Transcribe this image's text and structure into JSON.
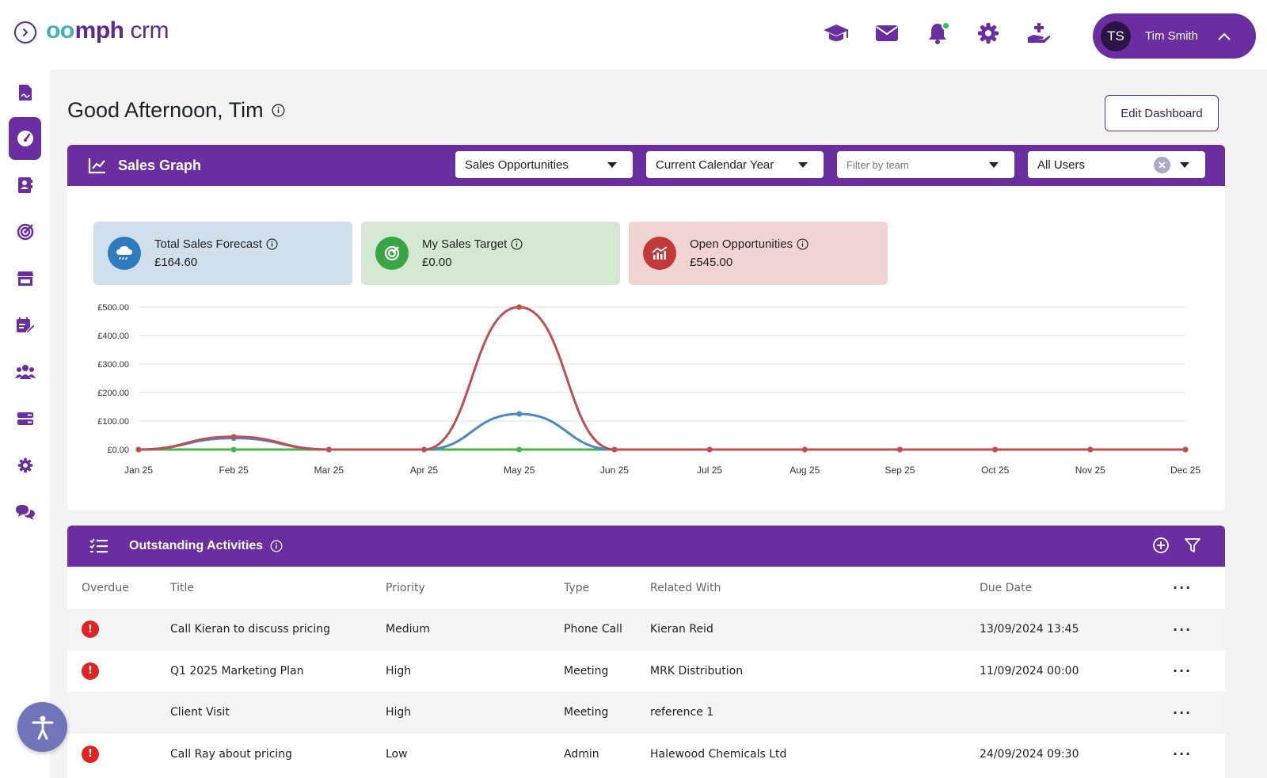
{
  "app": {
    "logo_mark": "oo",
    "logo_brand": "mph",
    "logo_sub": "crm"
  },
  "header": {
    "icons": [
      "graduation-cap-icon",
      "mail-icon",
      "bell-icon",
      "gear-icon",
      "hand-add-icon"
    ],
    "notification_dot_color": "#2fbf5a",
    "user": {
      "initials": "TS",
      "name": "Tim Smith"
    }
  },
  "sidebar": {
    "items": [
      {
        "name": "sidebar-item-documents",
        "icon": "document-signature-icon"
      },
      {
        "name": "sidebar-item-dashboard",
        "icon": "gauge-icon",
        "active": true
      },
      {
        "name": "sidebar-item-contacts",
        "icon": "contact-card-icon"
      },
      {
        "name": "sidebar-item-targets",
        "icon": "target-icon"
      },
      {
        "name": "sidebar-item-store",
        "icon": "store-icon"
      },
      {
        "name": "sidebar-item-calendar",
        "icon": "calendar-edit-icon"
      },
      {
        "name": "sidebar-item-teams",
        "icon": "people-group-icon"
      },
      {
        "name": "sidebar-item-servers",
        "icon": "server-icon"
      },
      {
        "name": "sidebar-item-settings",
        "icon": "gear-icon"
      },
      {
        "name": "sidebar-item-chat",
        "icon": "chat-bubbles-icon"
      }
    ]
  },
  "page": {
    "greeting": "Good Afternoon, Tim",
    "edit_dashboard": "Edit Dashboard"
  },
  "sales_graph": {
    "title": "Sales Graph",
    "filters": {
      "type": "Sales Opportunities",
      "period": "Current Calendar Year",
      "team_placeholder": "Filter by team",
      "users": "All Users"
    },
    "kpis": [
      {
        "label": "Total Sales Forecast",
        "value": "£164.60",
        "bg": "#cfdfec",
        "icon_bg": "#2f7bbf",
        "icon": "cloud-rain-icon"
      },
      {
        "label": "My Sales Target",
        "value": "£0.00",
        "bg": "#d5e8d2",
        "icon_bg": "#3aa544",
        "icon": "target-icon"
      },
      {
        "label": "Open Opportunities",
        "value": "£545.00",
        "bg": "#f1d3d3",
        "icon_bg": "#c13a3a",
        "icon": "chart-bars-icon"
      }
    ]
  },
  "chart_data": {
    "type": "line",
    "categories": [
      "Jan 25",
      "Feb 25",
      "Mar 25",
      "Apr 25",
      "May 25",
      "Jun 25",
      "Jul 25",
      "Aug 25",
      "Sep 25",
      "Oct 25",
      "Nov 25",
      "Dec 25"
    ],
    "y_ticks": [
      "£0.00",
      "£100.00",
      "£200.00",
      "£300.00",
      "£400.00",
      "£500.00"
    ],
    "ylim": [
      0,
      500
    ],
    "grid": true,
    "series": [
      {
        "color": "#c05050",
        "values": [
          0,
          45,
          0,
          0,
          500,
          0,
          0,
          0,
          0,
          0,
          0,
          0
        ]
      },
      {
        "color": "#4a8ac4",
        "values": [
          0,
          40,
          0,
          0,
          125,
          0,
          0,
          0,
          0,
          0,
          0,
          0
        ]
      },
      {
        "color": "#4caf50",
        "values": [
          0,
          0,
          0,
          0,
          0,
          0,
          0,
          0,
          0,
          0,
          0,
          0
        ]
      }
    ]
  },
  "activities": {
    "title": "Outstanding Activities",
    "columns": [
      "Overdue",
      "Title",
      "Priority",
      "Type",
      "Related With",
      "Due Date"
    ],
    "more_label": "···",
    "overdue_glyph": "!",
    "rows": [
      {
        "overdue": true,
        "title": "Call Kieran to discuss pricing",
        "priority": "Medium",
        "type": "Phone Call",
        "related": "Kieran Reid",
        "due": "13/09/2024 13:45"
      },
      {
        "overdue": true,
        "title": "Q1 2025 Marketing Plan",
        "priority": "High",
        "type": "Meeting",
        "related": "MRK Distribution",
        "due": "11/09/2024 00:00"
      },
      {
        "overdue": false,
        "title": "Client Visit",
        "priority": "High",
        "type": "Meeting",
        "related": "reference 1",
        "due": ""
      },
      {
        "overdue": true,
        "title": "Call Ray about pricing",
        "priority": "Low",
        "type": "Admin",
        "related": "Halewood Chemicals Ltd",
        "due": "24/09/2024 09:30"
      }
    ]
  },
  "colors": {
    "brand_purple": "#6a2ea0",
    "overdue_red": "#e02424"
  }
}
